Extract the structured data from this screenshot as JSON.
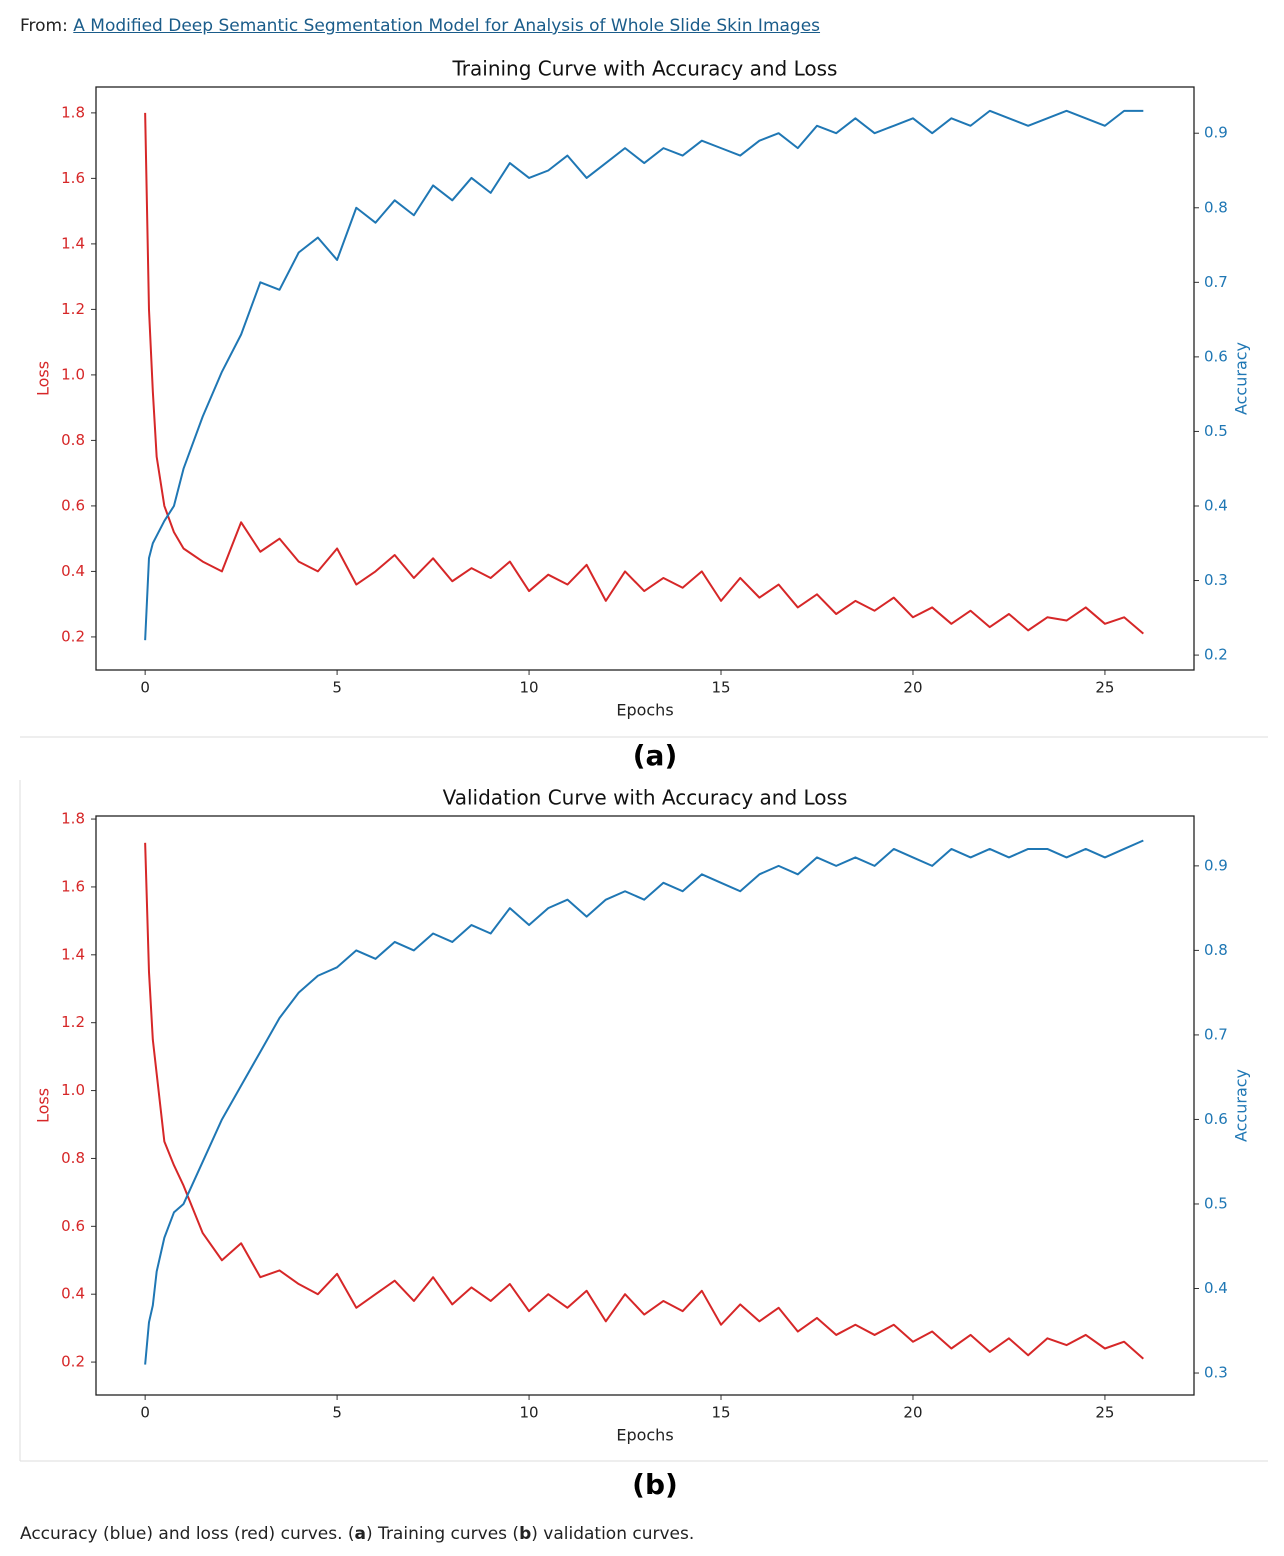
{
  "header": {
    "prefix": "From:",
    "link": "A Modified Deep Semantic Segmentation Model for Analysis of Whole Slide Skin Images"
  },
  "panel_labels": [
    "(a)",
    "(b)"
  ],
  "caption": [
    "Accuracy (blue) and loss (red) curves. (",
    "a",
    ") Training curves (",
    "b",
    ") validation curves."
  ],
  "chart_data": [
    {
      "type": "line",
      "title": "Training Curve with Accuracy and Loss",
      "xlabel": "Epochs",
      "x": [
        0,
        0.1,
        0.2,
        0.3,
        0.5,
        0.75,
        1,
        1.5,
        2,
        2.5,
        3,
        3.5,
        4,
        4.5,
        5,
        5.5,
        6,
        6.5,
        7,
        7.5,
        8,
        8.5,
        9,
        9.5,
        10,
        10.5,
        11,
        11.5,
        12,
        12.5,
        13,
        13.5,
        14,
        14.5,
        15,
        15.5,
        16,
        16.5,
        17,
        17.5,
        18,
        18.5,
        19,
        19.5,
        20,
        20.5,
        21,
        21.5,
        22,
        22.5,
        23,
        23.5,
        24,
        24.5,
        25,
        25.5,
        26
      ],
      "series": [
        {
          "name": "Loss",
          "color": "#d62728",
          "values": [
            1.8,
            1.2,
            0.95,
            0.75,
            0.6,
            0.52,
            0.47,
            0.43,
            0.4,
            0.55,
            0.46,
            0.5,
            0.43,
            0.4,
            0.47,
            0.36,
            0.4,
            0.45,
            0.38,
            0.44,
            0.37,
            0.41,
            0.38,
            0.43,
            0.34,
            0.39,
            0.36,
            0.42,
            0.31,
            0.4,
            0.34,
            0.38,
            0.35,
            0.4,
            0.31,
            0.38,
            0.32,
            0.36,
            0.29,
            0.33,
            0.27,
            0.31,
            0.28,
            0.32,
            0.26,
            0.29,
            0.24,
            0.28,
            0.23,
            0.27,
            0.22,
            0.26,
            0.25,
            0.29,
            0.24,
            0.26,
            0.21
          ]
        },
        {
          "name": "Accuracy",
          "color": "#1f77b4",
          "axis": "y2",
          "values": [
            0.22,
            0.33,
            0.35,
            0.36,
            0.38,
            0.4,
            0.45,
            0.52,
            0.58,
            0.63,
            0.7,
            0.69,
            0.74,
            0.76,
            0.73,
            0.8,
            0.78,
            0.81,
            0.79,
            0.83,
            0.81,
            0.84,
            0.82,
            0.86,
            0.84,
            0.85,
            0.87,
            0.84,
            0.86,
            0.88,
            0.86,
            0.88,
            0.87,
            0.89,
            0.88,
            0.87,
            0.89,
            0.9,
            0.88,
            0.91,
            0.9,
            0.92,
            0.9,
            0.91,
            0.92,
            0.9,
            0.92,
            0.91,
            0.93,
            0.92,
            0.91,
            0.92,
            0.93,
            0.92,
            0.91,
            0.93,
            0.93
          ]
        }
      ],
      "xlim": [
        -1.28,
        27.32
      ],
      "xticks": [
        0,
        5,
        10,
        15,
        20,
        25
      ],
      "ylim": [
        0.099,
        1.879
      ],
      "yticks": [
        0.2,
        0.4,
        0.6,
        0.8,
        {
          "value": 1,
          "label": "1.0"
        },
        1.2,
        1.4,
        1.6,
        1.8
      ],
      "y2lim": [
        0.18,
        0.962
      ],
      "y2ticks": [
        0.2,
        0.3,
        0.4,
        0.5,
        0.6,
        0.7,
        0.8,
        0.9
      ]
    },
    {
      "type": "line",
      "title": "Validation Curve with Accuracy and Loss",
      "xlabel": "Epochs",
      "x": [
        0,
        0.1,
        0.2,
        0.3,
        0.5,
        0.75,
        1,
        1.5,
        2,
        2.5,
        3,
        3.5,
        4,
        4.5,
        5,
        5.5,
        6,
        6.5,
        7,
        7.5,
        8,
        8.5,
        9,
        9.5,
        10,
        10.5,
        11,
        11.5,
        12,
        12.5,
        13,
        13.5,
        14,
        14.5,
        15,
        15.5,
        16,
        16.5,
        17,
        17.5,
        18,
        18.5,
        19,
        19.5,
        20,
        20.5,
        21,
        21.5,
        22,
        22.5,
        23,
        23.5,
        24,
        24.5,
        25,
        25.5,
        26
      ],
      "series": [
        {
          "name": "Loss",
          "color": "#d62728",
          "values": [
            1.73,
            1.35,
            1.15,
            1.05,
            0.85,
            0.78,
            0.72,
            0.58,
            0.5,
            0.55,
            0.45,
            0.47,
            0.43,
            0.4,
            0.46,
            0.36,
            0.4,
            0.44,
            0.38,
            0.45,
            0.37,
            0.42,
            0.38,
            0.43,
            0.35,
            0.4,
            0.36,
            0.41,
            0.32,
            0.4,
            0.34,
            0.38,
            0.35,
            0.41,
            0.31,
            0.37,
            0.32,
            0.36,
            0.29,
            0.33,
            0.28,
            0.31,
            0.28,
            0.31,
            0.26,
            0.29,
            0.24,
            0.28,
            0.23,
            0.27,
            0.22,
            0.27,
            0.25,
            0.28,
            0.24,
            0.26,
            0.21
          ]
        },
        {
          "name": "Accuracy",
          "color": "#1f77b4",
          "axis": "y2",
          "values": [
            0.31,
            0.36,
            0.38,
            0.42,
            0.46,
            0.49,
            0.5,
            0.55,
            0.6,
            0.64,
            0.68,
            0.72,
            0.75,
            0.77,
            0.78,
            0.8,
            0.79,
            0.81,
            0.8,
            0.82,
            0.81,
            0.83,
            0.82,
            0.85,
            0.83,
            0.85,
            0.86,
            0.84,
            0.86,
            0.87,
            0.86,
            0.88,
            0.87,
            0.89,
            0.88,
            0.87,
            0.89,
            0.9,
            0.89,
            0.91,
            0.9,
            0.91,
            0.9,
            0.92,
            0.91,
            0.9,
            0.92,
            0.91,
            0.92,
            0.91,
            0.92,
            0.92,
            0.91,
            0.92,
            0.91,
            0.92,
            0.93
          ]
        }
      ],
      "xlim": [
        -1.28,
        27.32
      ],
      "xticks": [
        0,
        5,
        10,
        15,
        20,
        25
      ],
      "ylim": [
        0.103,
        1.809
      ],
      "yticks": [
        0.2,
        0.4,
        0.6,
        0.8,
        {
          "value": 1,
          "label": "1.0"
        },
        1.2,
        1.4,
        1.6,
        1.8
      ],
      "y2lim": [
        0.274,
        0.959
      ],
      "y2ticks": [
        0.3,
        0.4,
        0.5,
        0.6,
        0.7,
        0.8,
        0.9
      ]
    }
  ]
}
